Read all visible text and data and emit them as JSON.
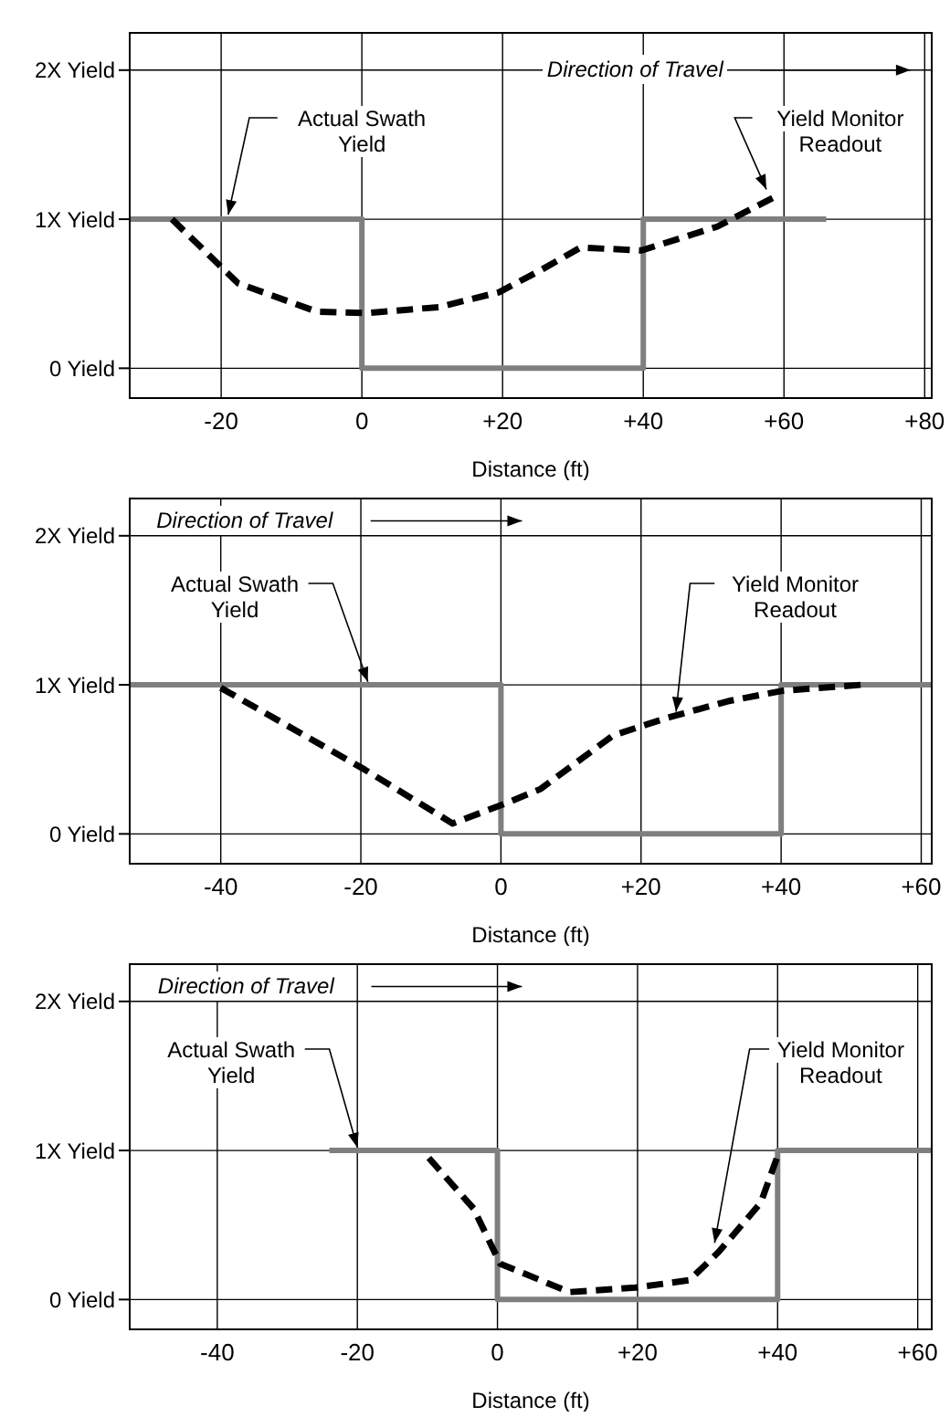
{
  "chart_data": [
    {
      "type": "line",
      "xlabel": "Distance (ft)",
      "xlim": [
        -33,
        81
      ],
      "ylim": [
        -0.2,
        2.25
      ],
      "xticks": [
        {
          "value": -20,
          "label": "-20"
        },
        {
          "value": 0,
          "label": "0"
        },
        {
          "value": 20,
          "label": "+20"
        },
        {
          "value": 40,
          "label": "+40"
        },
        {
          "value": 60,
          "label": "+60"
        },
        {
          "value": 80,
          "label": "+80"
        }
      ],
      "yticks": [
        {
          "value": 0,
          "label": "0 Yield"
        },
        {
          "value": 1,
          "label": "1X Yield"
        },
        {
          "value": 2,
          "label": "2X Yield"
        }
      ],
      "grid": true,
      "annotations": [
        "Direction of Travel"
      ],
      "series": [
        {
          "name": "Actual Swath Yield",
          "type": "step",
          "color": "#7f7f7f",
          "line_style": "solid",
          "x": [
            -33,
            0,
            40,
            66
          ],
          "values": [
            1,
            0,
            1,
            1
          ]
        },
        {
          "name": "Yield Monitor Readout",
          "type": "line",
          "color": "#000000",
          "line_style": "dashed",
          "x": [
            -27,
            -17.6,
            -6.4,
            0.5,
            10.9,
            19.5,
            25.5,
            31.1,
            39.7,
            50.5,
            59.1
          ],
          "values": [
            1,
            0.57,
            0.38,
            0.37,
            0.41,
            0.51,
            0.66,
            0.81,
            0.79,
            0.95,
            1.16
          ]
        }
      ]
    },
    {
      "type": "line",
      "xlabel": "Distance (ft)",
      "xlim": [
        -53,
        61.5
      ],
      "ylim": [
        -0.2,
        2.25
      ],
      "xticks": [
        {
          "value": -40,
          "label": "-40"
        },
        {
          "value": -20,
          "label": "-20"
        },
        {
          "value": 0,
          "label": "0"
        },
        {
          "value": 20,
          "label": "+20"
        },
        {
          "value": 40,
          "label": "+40"
        },
        {
          "value": 60,
          "label": "+60"
        }
      ],
      "yticks": [
        {
          "value": 0,
          "label": "0 Yield"
        },
        {
          "value": 1,
          "label": "1X Yield"
        },
        {
          "value": 2,
          "label": "2X Yield"
        }
      ],
      "grid": true,
      "annotations": [
        "Direction of Travel"
      ],
      "series": [
        {
          "name": "Actual Swath Yield",
          "type": "step",
          "color": "#7f7f7f",
          "line_style": "solid",
          "x": [
            -53,
            0,
            40,
            61.5
          ],
          "values": [
            1,
            0,
            1,
            1
          ]
        },
        {
          "name": "Yield Monitor Readout",
          "type": "line",
          "color": "#000000",
          "line_style": "dashed",
          "x": [
            -40,
            -19.4,
            -6.9,
            0.4,
            5.6,
            16,
            23.8,
            32.4,
            40.2,
            51.4
          ],
          "values": [
            0.98,
            0.43,
            0.07,
            0.2,
            0.3,
            0.66,
            0.78,
            0.89,
            0.96,
            1.0
          ]
        }
      ]
    },
    {
      "type": "line",
      "xlabel": "Distance (ft)",
      "xlim": [
        -52.5,
        62
      ],
      "ylim": [
        -0.2,
        2.25
      ],
      "xticks": [
        {
          "value": -40,
          "label": "-40"
        },
        {
          "value": -20,
          "label": "-20"
        },
        {
          "value": 0,
          "label": "0"
        },
        {
          "value": 20,
          "label": "+20"
        },
        {
          "value": 40,
          "label": "+40"
        },
        {
          "value": 60,
          "label": "+60"
        }
      ],
      "yticks": [
        {
          "value": 0,
          "label": "0 Yield"
        },
        {
          "value": 1,
          "label": "1X Yield"
        },
        {
          "value": 2,
          "label": "2X Yield"
        }
      ],
      "grid": true,
      "annotations": [
        "Direction of Travel"
      ],
      "series": [
        {
          "name": "Actual Swath Yield",
          "type": "step",
          "color": "#7f7f7f",
          "line_style": "solid",
          "x": [
            -24,
            0,
            40,
            62
          ],
          "values": [
            1,
            0,
            1,
            1
          ]
        },
        {
          "name": "Yield Monitor Readout",
          "type": "line",
          "color": "#000000",
          "line_style": "dashed",
          "x": [
            -9.8,
            -3.4,
            0.4,
            10.3,
            19.7,
            27.4,
            31.6,
            37.6,
            40.2
          ],
          "values": [
            0.95,
            0.61,
            0.24,
            0.05,
            0.08,
            0.13,
            0.32,
            0.65,
            0.99
          ]
        }
      ]
    }
  ]
}
